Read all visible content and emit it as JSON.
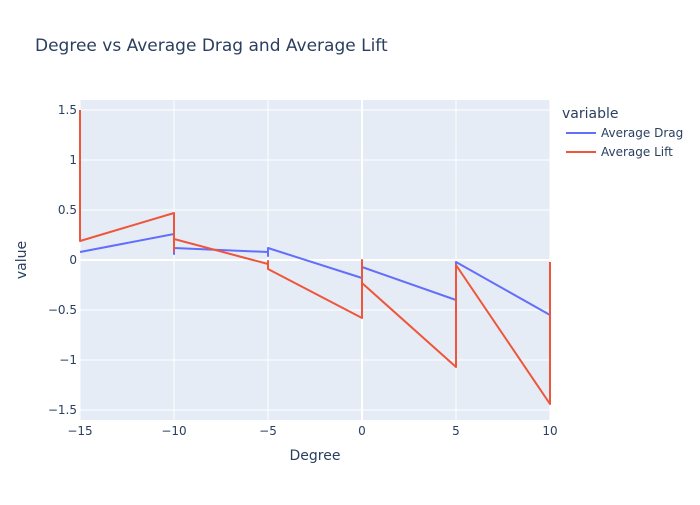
{
  "chart_data": {
    "type": "line",
    "title": "Degree vs Average Drag and Average Lift",
    "xlabel": "Degree",
    "ylabel": "value",
    "xlim": [
      -15,
      10
    ],
    "ylim": [
      -1.6,
      1.6
    ],
    "x_ticks": [
      -15,
      -10,
      -5,
      0,
      5,
      10
    ],
    "x_tick_labels": [
      "−15",
      "−10",
      "−5",
      "0",
      "5",
      "10"
    ],
    "y_ticks": [
      -1.5,
      -1,
      -0.5,
      0,
      0.5,
      1,
      1.5
    ],
    "y_tick_labels": [
      "−1.5",
      "−1",
      "−0.5",
      "0",
      "0.5",
      "1",
      "1.5"
    ],
    "grid": true,
    "legend": {
      "title": "variable",
      "position": "top-right"
    },
    "series": [
      {
        "name": "Average Drag",
        "color": "#636efa",
        "points": [
          [
            -15,
            0.08
          ],
          [
            -10,
            0.26
          ],
          [
            -10,
            0.06
          ],
          [
            -10,
            0.12
          ],
          [
            -5,
            0.08
          ],
          [
            -5,
            0.04
          ],
          [
            -5,
            0.12
          ],
          [
            0,
            -0.18
          ],
          [
            0,
            -0.01
          ],
          [
            0,
            -0.07
          ],
          [
            5,
            -0.4
          ],
          [
            5,
            -0.02
          ],
          [
            10,
            -0.55
          ],
          [
            10,
            -0.02
          ]
        ]
      },
      {
        "name": "Average Lift",
        "color": "#ef553b",
        "points": [
          [
            -15,
            1.5
          ],
          [
            -15,
            0.19
          ],
          [
            -10,
            0.47
          ],
          [
            -10,
            0.09
          ],
          [
            -10,
            0.21
          ],
          [
            -5,
            -0.04
          ],
          [
            -5,
            -0.01
          ],
          [
            -5,
            -0.09
          ],
          [
            0,
            -0.58
          ],
          [
            0,
            0.0
          ],
          [
            0,
            -0.23
          ],
          [
            5,
            -1.07
          ],
          [
            5,
            -0.05
          ],
          [
            10,
            -1.44
          ],
          [
            10,
            -0.02
          ]
        ]
      }
    ]
  }
}
